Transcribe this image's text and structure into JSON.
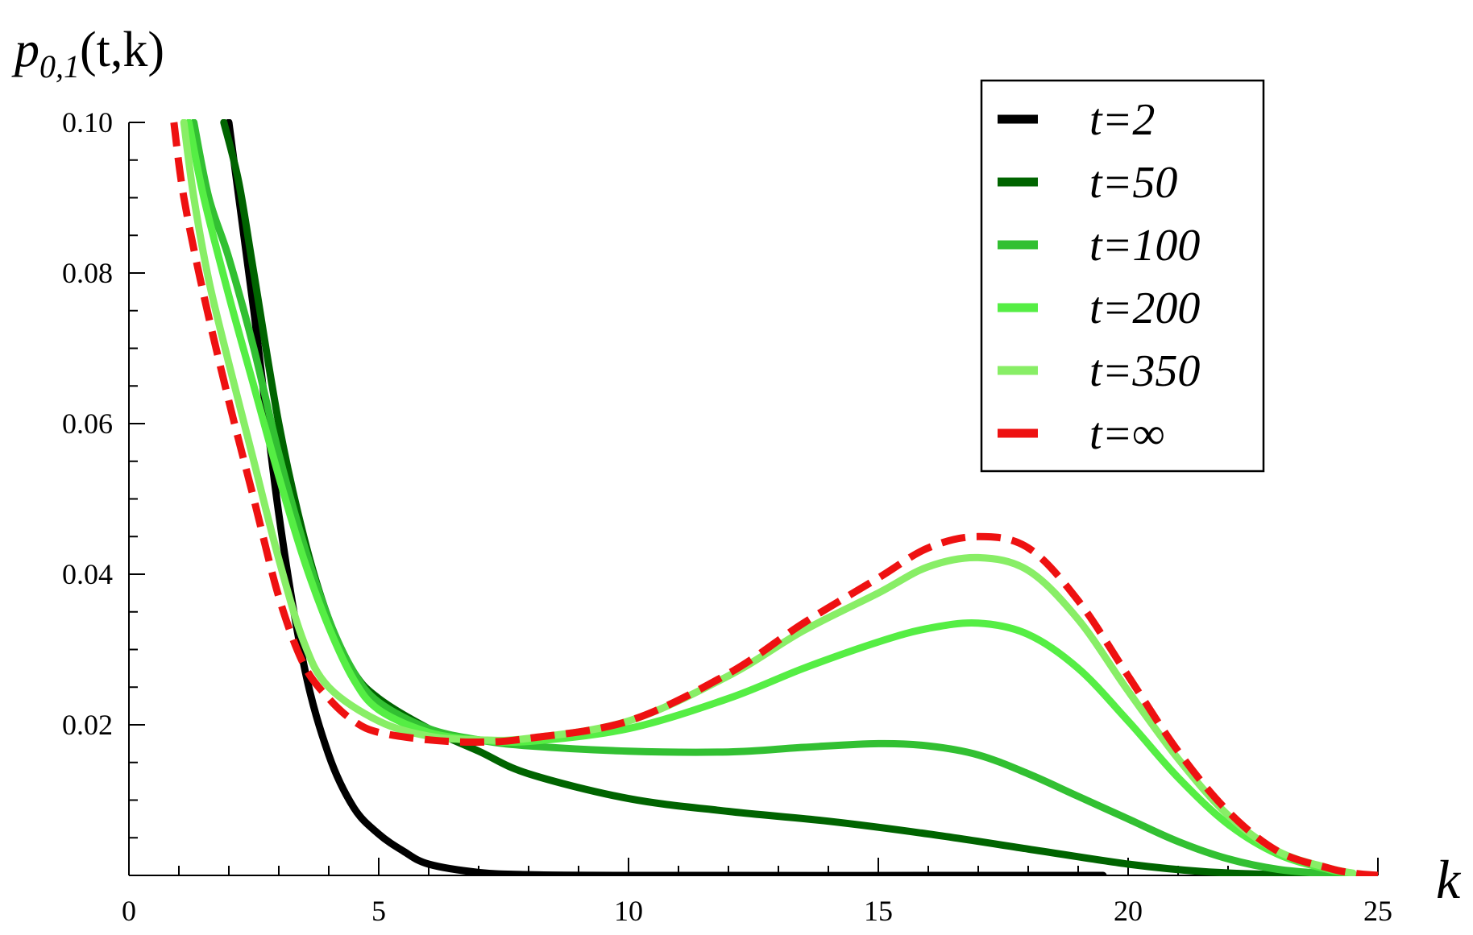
{
  "chart_data": {
    "type": "line",
    "ylabel": "p0,1(t,k)",
    "ylabel_parts": {
      "base": "p",
      "sub": "0,1",
      "args": "(t,k)"
    },
    "xlabel": "k",
    "xlim": [
      0,
      25
    ],
    "ylim": [
      0,
      0.1
    ],
    "x_ticks": [
      "0",
      "5",
      "10",
      "15",
      "20",
      "25"
    ],
    "y_ticks": [
      "0.02",
      "0.04",
      "0.06",
      "0.08",
      "0.10"
    ],
    "grid": false,
    "legend_position": "top-right",
    "series": [
      {
        "name": "t=2",
        "color": "#000000",
        "style": "solid",
        "points": [
          [
            2.0,
            0.1
          ],
          [
            2.2,
            0.09
          ],
          [
            2.5,
            0.075
          ],
          [
            3,
            0.048
          ],
          [
            3.5,
            0.028
          ],
          [
            4,
            0.016
          ],
          [
            4.5,
            0.009
          ],
          [
            5,
            0.0055
          ],
          [
            5.5,
            0.0032
          ],
          [
            6,
            0.0015
          ],
          [
            7,
            0.0004
          ],
          [
            8,
            0.0001
          ],
          [
            10,
            0
          ],
          [
            19.5,
            0
          ]
        ]
      },
      {
        "name": "t=50",
        "color": "#006400",
        "style": "solid",
        "points": [
          [
            1.9,
            0.1
          ],
          [
            2.2,
            0.092
          ],
          [
            2.5,
            0.08
          ],
          [
            3,
            0.06
          ],
          [
            3.5,
            0.045
          ],
          [
            4,
            0.034
          ],
          [
            4.5,
            0.027
          ],
          [
            5,
            0.0235
          ],
          [
            6,
            0.0195
          ],
          [
            7,
            0.0165
          ],
          [
            8,
            0.0135
          ],
          [
            10,
            0.0102
          ],
          [
            12,
            0.0085
          ],
          [
            14,
            0.0072
          ],
          [
            16,
            0.0055
          ],
          [
            18,
            0.0035
          ],
          [
            20,
            0.0015
          ],
          [
            21.5,
            0.0005
          ],
          [
            23,
            0.0001
          ],
          [
            24,
            0
          ]
        ]
      },
      {
        "name": "t=100",
        "color": "#32c032",
        "style": "solid",
        "points": [
          [
            1.3,
            0.1
          ],
          [
            1.6,
            0.09
          ],
          [
            2,
            0.082
          ],
          [
            2.5,
            0.07
          ],
          [
            3,
            0.056
          ],
          [
            3.5,
            0.044
          ],
          [
            4,
            0.034
          ],
          [
            4.5,
            0.027
          ],
          [
            5,
            0.023
          ],
          [
            6,
            0.0195
          ],
          [
            7,
            0.018
          ],
          [
            8,
            0.0172
          ],
          [
            10,
            0.0165
          ],
          [
            12,
            0.0164
          ],
          [
            13.5,
            0.017
          ],
          [
            15,
            0.0175
          ],
          [
            16,
            0.0172
          ],
          [
            17,
            0.016
          ],
          [
            18,
            0.0135
          ],
          [
            19,
            0.0105
          ],
          [
            20,
            0.0075
          ],
          [
            21,
            0.0045
          ],
          [
            22,
            0.0022
          ],
          [
            23,
            0.0008
          ],
          [
            24,
            0.0002
          ],
          [
            24.5,
            0
          ]
        ]
      },
      {
        "name": "t=200",
        "color": "#55ee44",
        "style": "solid",
        "points": [
          [
            1.2,
            0.1
          ],
          [
            1.5,
            0.09
          ],
          [
            2,
            0.077
          ],
          [
            2.5,
            0.065
          ],
          [
            3,
            0.053
          ],
          [
            3.5,
            0.042
          ],
          [
            4,
            0.033
          ],
          [
            4.5,
            0.026
          ],
          [
            5,
            0.022
          ],
          [
            6,
            0.019
          ],
          [
            7,
            0.018
          ],
          [
            8,
            0.0178
          ],
          [
            10,
            0.0195
          ],
          [
            12,
            0.0235
          ],
          [
            13.5,
            0.0275
          ],
          [
            15,
            0.031
          ],
          [
            16,
            0.0328
          ],
          [
            17,
            0.0335
          ],
          [
            18,
            0.032
          ],
          [
            19,
            0.0275
          ],
          [
            20,
            0.0205
          ],
          [
            21,
            0.013
          ],
          [
            22,
            0.0068
          ],
          [
            23,
            0.0028
          ],
          [
            24,
            0.0008
          ],
          [
            24.5,
            0.0002
          ]
        ]
      },
      {
        "name": "t=350",
        "color": "#88ee66",
        "style": "solid",
        "points": [
          [
            1.1,
            0.1
          ],
          [
            1.3,
            0.09
          ],
          [
            1.6,
            0.079
          ],
          [
            2,
            0.068
          ],
          [
            2.5,
            0.055
          ],
          [
            3,
            0.042
          ],
          [
            3.5,
            0.031
          ],
          [
            4,
            0.025
          ],
          [
            5,
            0.0205
          ],
          [
            6,
            0.0185
          ],
          [
            7,
            0.018
          ],
          [
            8,
            0.0182
          ],
          [
            10,
            0.0205
          ],
          [
            12,
            0.0265
          ],
          [
            13.5,
            0.0325
          ],
          [
            15,
            0.0375
          ],
          [
            16,
            0.041
          ],
          [
            17,
            0.0422
          ],
          [
            18,
            0.0405
          ],
          [
            19,
            0.034
          ],
          [
            20,
            0.0245
          ],
          [
            21,
            0.0155
          ],
          [
            22,
            0.008
          ],
          [
            23,
            0.0032
          ],
          [
            24,
            0.001
          ],
          [
            24.5,
            0.0003
          ]
        ]
      },
      {
        "name": "t=∞",
        "color": "#ee1111",
        "style": "dashed",
        "points": [
          [
            0.9,
            0.1
          ],
          [
            1.1,
            0.09
          ],
          [
            1.5,
            0.077
          ],
          [
            2,
            0.063
          ],
          [
            2.5,
            0.05
          ],
          [
            3,
            0.037
          ],
          [
            3.5,
            0.028
          ],
          [
            4,
            0.0235
          ],
          [
            4.5,
            0.0205
          ],
          [
            5,
            0.019
          ],
          [
            6,
            0.018
          ],
          [
            7,
            0.0177
          ],
          [
            8,
            0.0182
          ],
          [
            10,
            0.0205
          ],
          [
            12,
            0.0268
          ],
          [
            13.5,
            0.0335
          ],
          [
            15,
            0.0395
          ],
          [
            16,
            0.0435
          ],
          [
            17,
            0.045
          ],
          [
            18,
            0.0435
          ],
          [
            19,
            0.0365
          ],
          [
            20,
            0.0265
          ],
          [
            21,
            0.0165
          ],
          [
            22,
            0.0085
          ],
          [
            23,
            0.0032
          ],
          [
            24,
            0.001
          ],
          [
            24.5,
            0.0003
          ],
          [
            25,
            0
          ]
        ]
      }
    ]
  }
}
